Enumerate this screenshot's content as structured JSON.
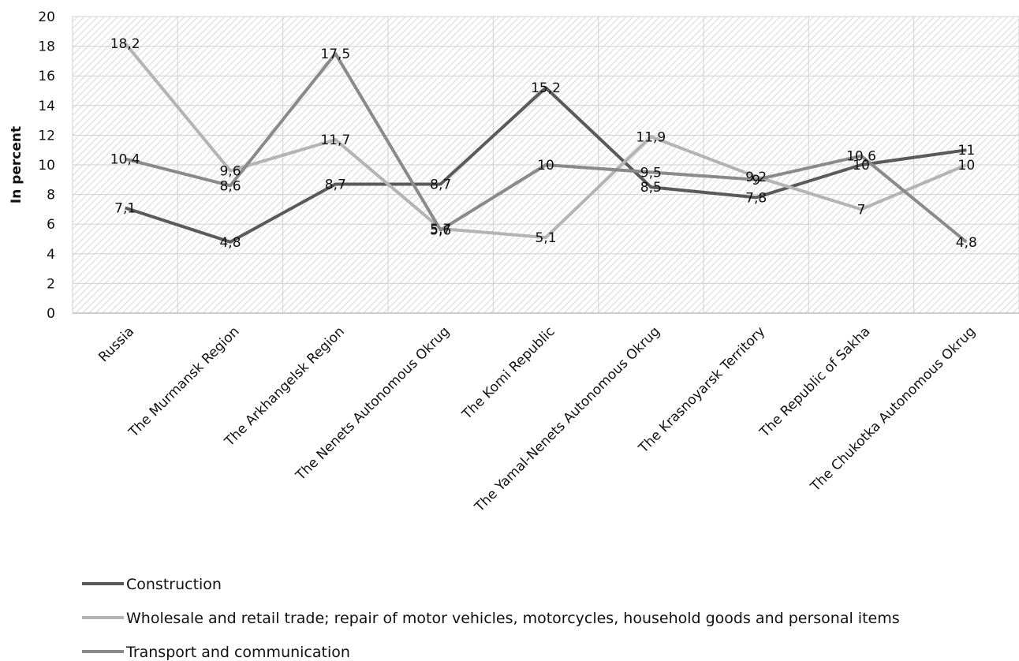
{
  "chart_data": {
    "type": "line",
    "ylabel": "In percent",
    "ylim": [
      0,
      20
    ],
    "yticks": [
      "0",
      "2",
      "4",
      "6",
      "8",
      "10",
      "12",
      "14",
      "16",
      "18",
      "20"
    ],
    "grid": "hatched plot area",
    "legend_position": "bottom-left",
    "categories": [
      "Russia",
      "The Murmansk Region",
      "The Arkhangelsk Region",
      "The Nenets Autonomous Okrug",
      "The Komi Republic",
      "The Yamal-Nenets Autonomous Okrug",
      "The Krasnoyarsk Territory",
      "The Republic of Sakha",
      "The Chukotka Autonomous Okrug"
    ],
    "series": [
      {
        "name": "Construction",
        "color": "#5a5a5a",
        "values": [
          7.1,
          4.8,
          8.7,
          8.7,
          15.2,
          8.5,
          7.8,
          10,
          11
        ],
        "labels": [
          "7,1",
          "4,8",
          "8,7",
          "8,7",
          "15,2",
          "8,5",
          "7,8",
          "10",
          "11"
        ]
      },
      {
        "name": "Wholesale and retail trade; repair of motor vehicles, motorcycles, household goods and personal items",
        "color": "#b4b4b4",
        "values": [
          18.2,
          9.6,
          11.7,
          5.7,
          5.1,
          11.9,
          9.2,
          7,
          10
        ],
        "labels": [
          "18,2",
          "9,6",
          "11,7",
          "5,7",
          "5,1",
          "11,9",
          "9,2",
          "7",
          "10"
        ]
      },
      {
        "name": "Transport and communication",
        "color": "#8a8a8a",
        "values": [
          10.4,
          8.6,
          17.5,
          5.6,
          10,
          9.5,
          9,
          10.6,
          4.8
        ],
        "labels": [
          "10,4",
          "8,6",
          "17,5",
          "5,6",
          "10",
          "9,5",
          "9",
          "10,6",
          "4,8"
        ]
      }
    ]
  }
}
